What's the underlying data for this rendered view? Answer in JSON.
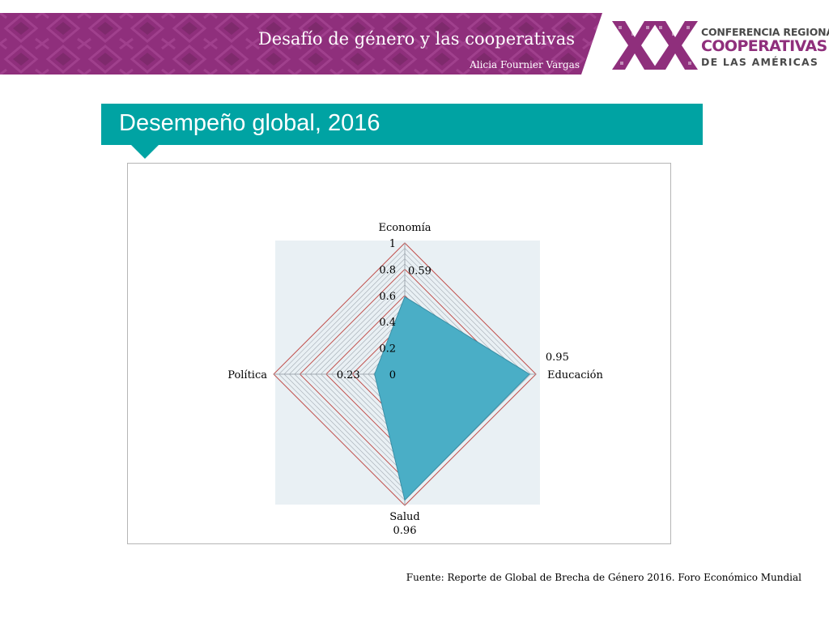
{
  "header": {
    "title": "Desafío de género y las cooperativas",
    "author": "Alicia Fournier Vargas"
  },
  "logo": {
    "line1": "CONFERENCIA REGIONAL",
    "line2": "COOPERATIVAS",
    "line3": "DE LAS AMÉRICAS"
  },
  "section": {
    "title": "Desempeño global, 2016"
  },
  "chart_data": {
    "type": "radar",
    "categories": [
      "Economía",
      "Educación",
      "Salud",
      "Política"
    ],
    "values": [
      0.59,
      0.95,
      0.96,
      0.23
    ],
    "value_labels": [
      "0.59",
      "0.95",
      "0.96",
      "0.23"
    ],
    "r_range": [
      0,
      1
    ],
    "r_ticks": [
      0,
      0.2,
      0.4,
      0.6,
      0.8,
      1
    ],
    "r_tick_labels": [
      "0",
      "0.2",
      "0.4",
      "0.6",
      "0.8",
      "1"
    ],
    "grid": true,
    "legend": "none"
  },
  "source": "Fuente: Reporte de Global de Brecha de Género 2016. Foro Económico Mundial",
  "colors": {
    "banner": "#8f2f7c",
    "section": "#00a3a3",
    "series_fill": "#4aaec6",
    "plot_bg": "#e9f0f4",
    "grid_major": "#c0504d",
    "grid_minor": "#a0a8b0"
  }
}
